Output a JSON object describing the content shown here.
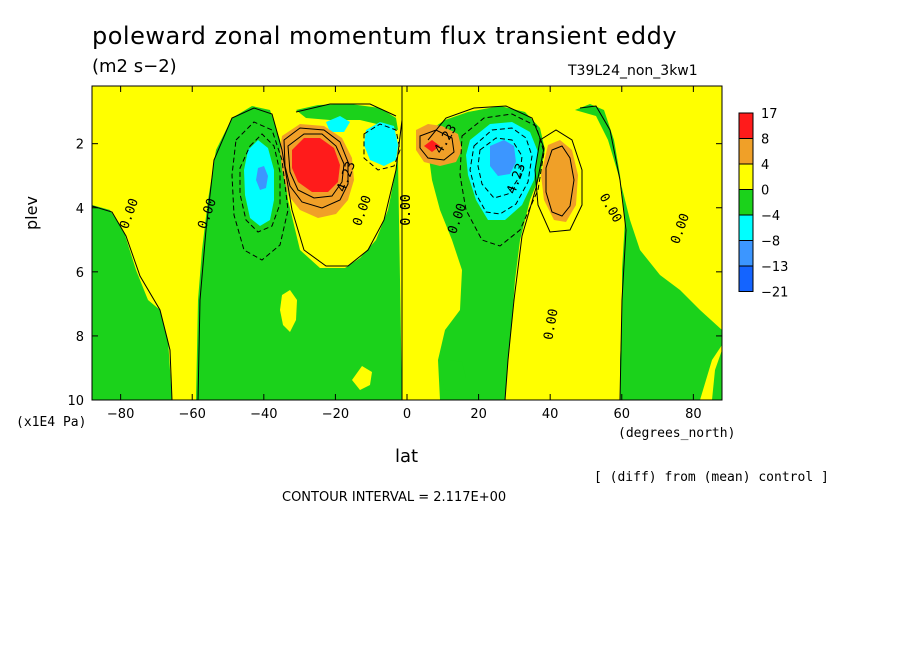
{
  "chart_data": {
    "type": "heatmap",
    "title": "poleward zonal momentum flux transient eddy",
    "units": "(m2 s−2)",
    "run_label": "T39L24_non_3kw1",
    "xlabel": "lat",
    "xunits": "(degrees_north)",
    "ylabel": "plev",
    "yunits": "(x1E4 Pa)",
    "x_ticks": [
      "−80",
      "−60",
      "−40",
      "−20",
      "0",
      "20",
      "40",
      "60",
      "80"
    ],
    "y_ticks": [
      "2",
      "4",
      "6",
      "8",
      "10"
    ],
    "xlim": [
      -88,
      88
    ],
    "ylim": [
      10,
      0.2
    ],
    "colorbar": {
      "levels": [
        "17",
        "8",
        "4",
        "0",
        "−4",
        "−8",
        "−13",
        "−21"
      ],
      "colors": [
        "#ff1b1b",
        "#f0a028",
        "#ffff00",
        "#1bd21b",
        "#00ffff",
        "#3c96ff",
        "#1464ff"
      ]
    },
    "contour_labels": [
      "0.00",
      "0.00",
      "0.00",
      "0.00",
      "0.00",
      "0.00",
      "0.00",
      "0.00",
      "0.00",
      "4.23",
      "4.23",
      "4.23"
    ],
    "extrema": [
      {
        "lat": -27,
        "plev": 2.4,
        "value": 17
      },
      {
        "lat": -41,
        "plev": 3.0,
        "value": -8
      },
      {
        "lat": -7,
        "plev": 2.0,
        "value": -8
      },
      {
        "lat": 7,
        "plev": 2.0,
        "value": 8
      },
      {
        "lat": 27,
        "plev": 2.4,
        "value": -13
      },
      {
        "lat": 42,
        "plev": 3.0,
        "value": 8
      }
    ],
    "contour_interval_text": "CONTOUR INTERVAL = 2.117E+00",
    "note": "[ (diff) from (mean) control ]"
  }
}
